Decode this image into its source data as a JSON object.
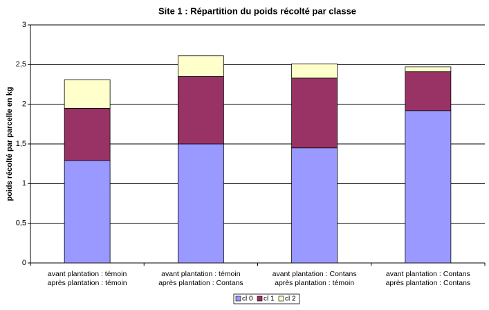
{
  "chart_data": {
    "type": "stacked_bar",
    "title": "Site 1 : Répartition du poids récolté par classe",
    "y_label": "poids récolté par parcelle en kg",
    "categories": [
      [
        "avant plantation : témoin",
        "après plantation : témoin"
      ],
      [
        "avant plantation : témoin",
        "après plantation : Contans"
      ],
      [
        "avant plantation : Contans",
        "après plantation : témoin"
      ],
      [
        "avant plantation : Contans",
        "après plantation : Contans"
      ]
    ],
    "series": [
      {
        "name": "cl 0",
        "color": "#9999ff",
        "values": [
          1.29,
          1.5,
          1.45,
          1.92
        ]
      },
      {
        "name": "cl 1",
        "color": "#993366",
        "values": [
          0.66,
          0.85,
          0.88,
          0.49
        ]
      },
      {
        "name": "cl 2",
        "color": "#ffffcc",
        "values": [
          0.36,
          0.26,
          0.18,
          0.06
        ]
      }
    ],
    "ylim": [
      0,
      3
    ],
    "yticks": [
      0,
      {
        "value": 0.5,
        "label": "0,5"
      },
      1,
      {
        "value": 1.5,
        "label": "1,5"
      },
      2,
      {
        "value": 2.5,
        "label": "2,5"
      },
      3
    ],
    "grid": true,
    "legend": "bottom"
  }
}
